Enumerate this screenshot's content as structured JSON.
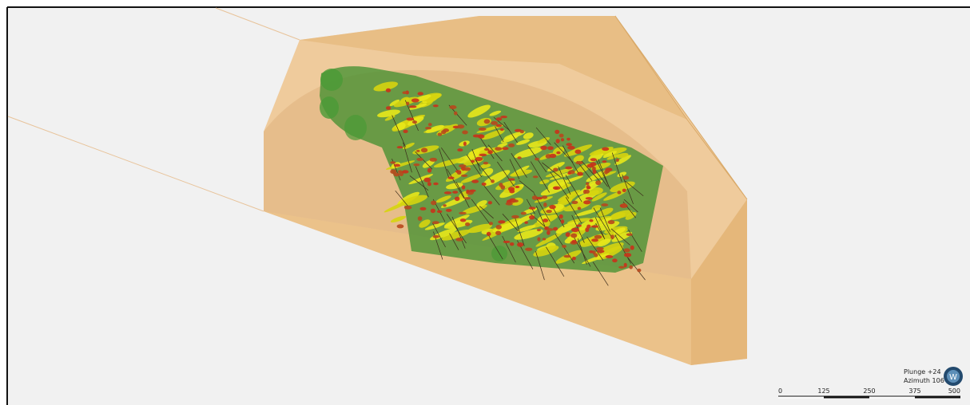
{
  "viewer": {
    "orientation": {
      "plunge": "Plunge +24",
      "azimuth": "Azimuth 106"
    },
    "compass": "W",
    "scale_bar": {
      "labels": [
        "0",
        "125",
        "250",
        "375",
        "500"
      ]
    }
  }
}
